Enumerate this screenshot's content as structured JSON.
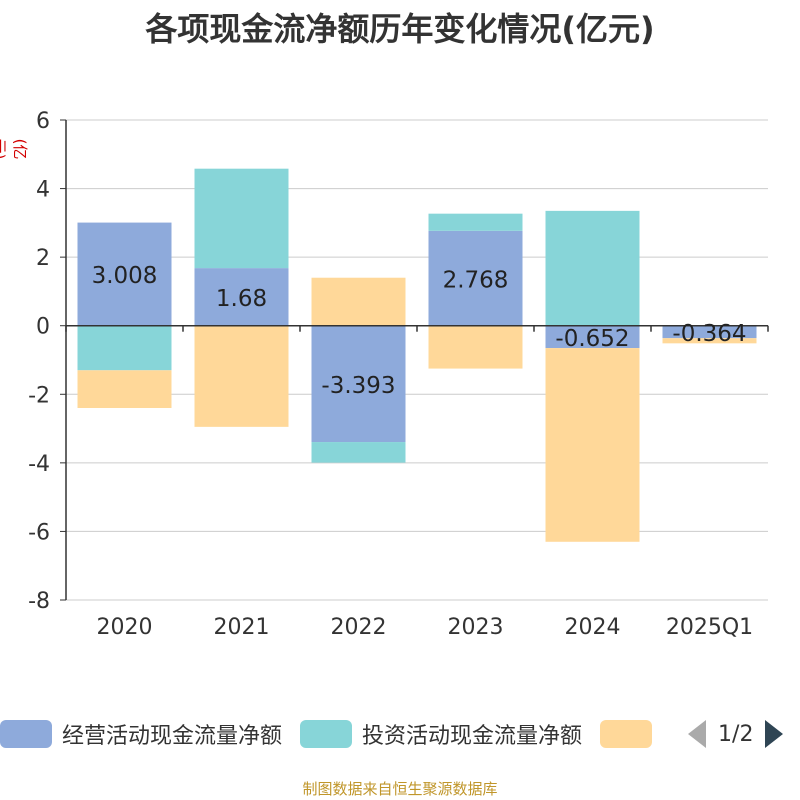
{
  "title": "各项现金流净额历年变化情况(亿元)",
  "unit_label": "(亿元)",
  "source": "制图数据来自恒生聚源数据库",
  "legend": {
    "items": [
      {
        "label": "经营活动现金流量净额",
        "color": "#8eaadb"
      },
      {
        "label": "投资活动现金流量净额",
        "color": "#87d5d8"
      },
      {
        "label": "",
        "color": "#ffd899"
      }
    ],
    "pager": "1/2"
  },
  "chart_data": {
    "type": "bar",
    "stacked": true,
    "categories": [
      "2020",
      "2021",
      "2022",
      "2023",
      "2024",
      "2025Q1"
    ],
    "ylim": [
      -8,
      6
    ],
    "yticks": [
      6,
      4,
      2,
      0,
      -2,
      -4,
      -6,
      -8
    ],
    "grid": true,
    "legend_position": "bottom",
    "series": [
      {
        "name": "经营活动现金流量净额",
        "color": "#8eaadb",
        "values": [
          3.008,
          1.68,
          -3.393,
          2.768,
          -0.652,
          -0.364
        ],
        "labels": [
          "3.008",
          "1.68",
          "-3.393",
          "2.768",
          "-0.652",
          "-0.364"
        ]
      },
      {
        "name": "投资活动现金流量净额",
        "color": "#87d5d8",
        "values": [
          -1.3,
          2.9,
          -0.6,
          0.5,
          3.35,
          0
        ]
      },
      {
        "name": "",
        "color": "#ffd899",
        "values": [
          -1.1,
          -2.95,
          1.4,
          -1.25,
          -5.65,
          -0.15
        ]
      }
    ]
  }
}
